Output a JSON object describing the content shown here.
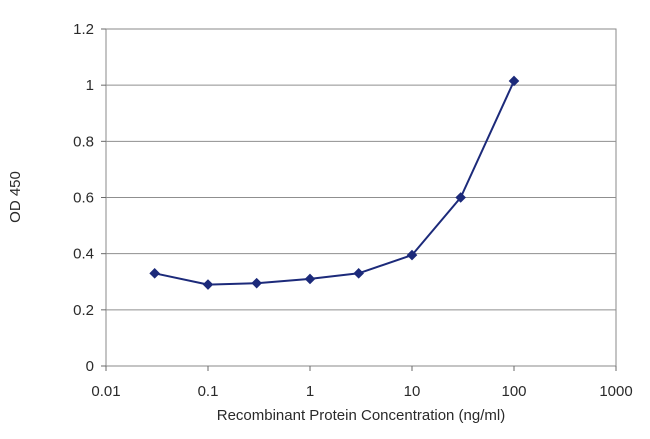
{
  "chart_data": {
    "type": "line",
    "title": "",
    "xlabel": "Recombinant Protein Concentration (ng/ml)",
    "ylabel": "OD 450",
    "x_scale": "log",
    "xlim": [
      0.01,
      1000
    ],
    "ylim": [
      0,
      1.2
    ],
    "x_ticks": [
      0.01,
      0.1,
      1,
      10,
      100,
      1000
    ],
    "x_tick_labels": [
      "0.01",
      "0.1",
      "1",
      "10",
      "100",
      "1000"
    ],
    "y_ticks": [
      0,
      0.2,
      0.4,
      0.6,
      0.8,
      1,
      1.2
    ],
    "y_tick_labels": [
      "0",
      "0.2",
      "0.4",
      "0.6",
      "0.8",
      "1",
      "1.2"
    ],
    "grid": "horizontal",
    "legend": "none",
    "series": [
      {
        "x": [
          0.03,
          0.1,
          0.3,
          1,
          3,
          10,
          30,
          100
        ],
        "y": [
          0.33,
          0.29,
          0.295,
          0.31,
          0.33,
          0.395,
          0.6,
          1.015
        ],
        "color": "#1c2a7a"
      }
    ]
  }
}
